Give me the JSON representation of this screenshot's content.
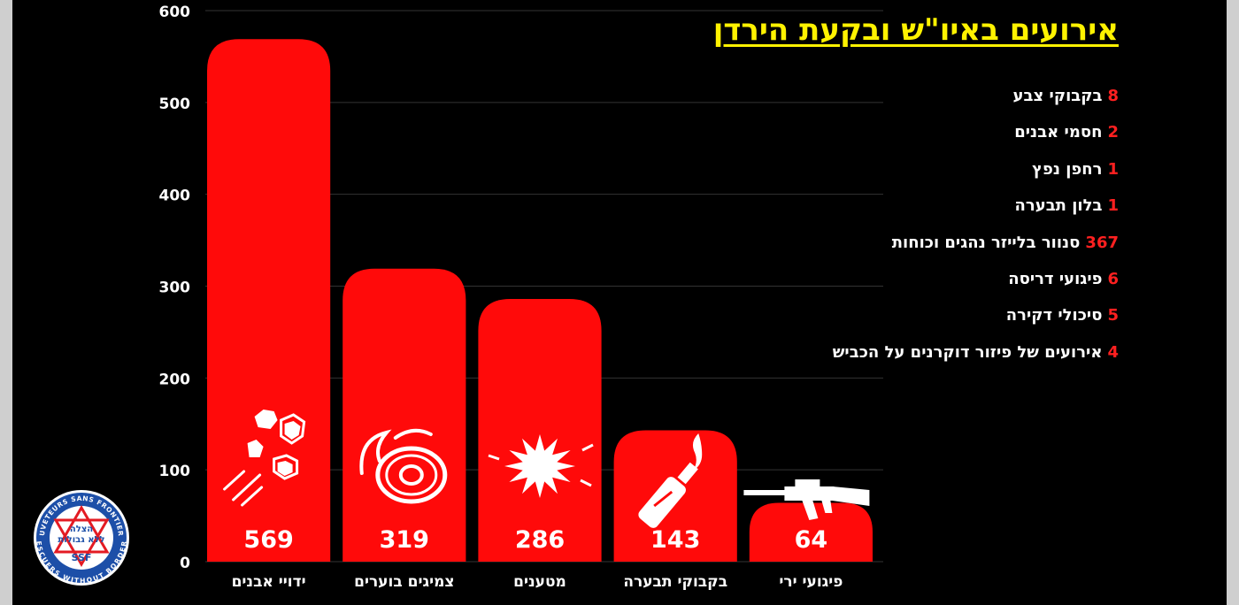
{
  "title": "אירועים באיו\"ש ובקעת הירדן",
  "legend": [
    {
      "num": "8",
      "text": "בקבוקי צבע"
    },
    {
      "num": "2",
      "text": "חסמי אבנים"
    },
    {
      "num": "1",
      "text": "רחפן נפץ"
    },
    {
      "num": "1",
      "text": "בלון תבערה"
    },
    {
      "num": "367",
      "text": "סנוור בלייזר נהגים וכוחות"
    },
    {
      "num": "6",
      "text": "פיגועי דריסה"
    },
    {
      "num": "5",
      "text": "סיכולי דקירה"
    },
    {
      "num": "4",
      "text": "אירועים של פיזור דוקרנים על הכביש"
    }
  ],
  "colors": {
    "bar": "#ff0a0a",
    "title": "#fff200",
    "legend_num": "#ff2020",
    "grid": "#333333",
    "logo": "#1d4fa8"
  },
  "logo": {
    "top_text": "SAUVETEURS SANS FRONTIERES",
    "bottom_text": "RESCUERS WITHOUT BORDERS",
    "line1": "הצלה",
    "line2": "ללא גבולות",
    "abbr": "SSF"
  },
  "chart_data": {
    "type": "bar",
    "categories": [
      "ידויי אבנים",
      "צמיגים בוערים",
      "מטענים",
      "בקבוקי תבערה",
      "פיגועי ירי"
    ],
    "values": [
      569,
      319,
      286,
      143,
      64
    ],
    "icons": [
      "stones-icon",
      "burning-tire-icon",
      "explosion-icon",
      "molotov-icon",
      "rifle-icon"
    ],
    "yticks": [
      0,
      100,
      200,
      300,
      400,
      500,
      600
    ],
    "ylim": [
      0,
      600
    ],
    "grid": true
  }
}
